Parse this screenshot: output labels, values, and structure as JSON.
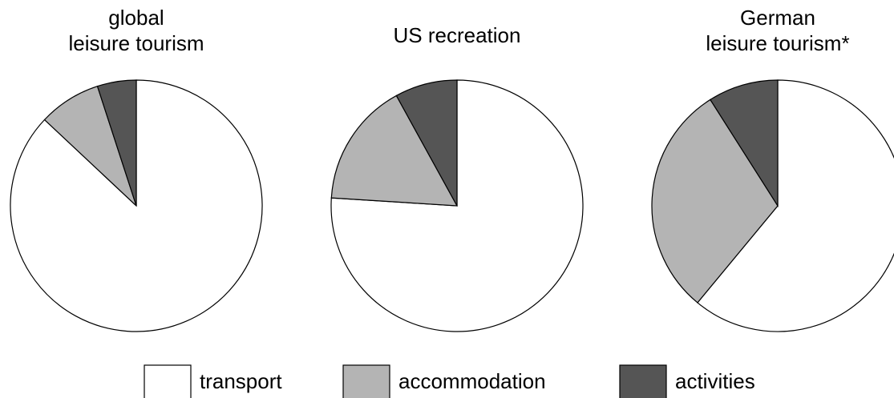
{
  "chart_data": [
    {
      "type": "pie",
      "title": [
        "global",
        "leisure tourism"
      ],
      "categories": [
        "transport",
        "accommodation",
        "activities"
      ],
      "values": [
        87,
        8,
        5
      ],
      "colors": [
        "#ffffff",
        "#b4b4b4",
        "#555555"
      ]
    },
    {
      "type": "pie",
      "title": [
        "US recreation"
      ],
      "categories": [
        "transport",
        "accommodation",
        "activities"
      ],
      "values": [
        76,
        16,
        8
      ],
      "colors": [
        "#ffffff",
        "#b4b4b4",
        "#555555"
      ]
    },
    {
      "type": "pie",
      "title": [
        "German",
        "leisure tourism*"
      ],
      "categories": [
        "transport",
        "accommodation",
        "activities"
      ],
      "values": [
        61,
        30,
        9
      ],
      "colors": [
        "#ffffff",
        "#b4b4b4",
        "#555555"
      ]
    }
  ]
}
